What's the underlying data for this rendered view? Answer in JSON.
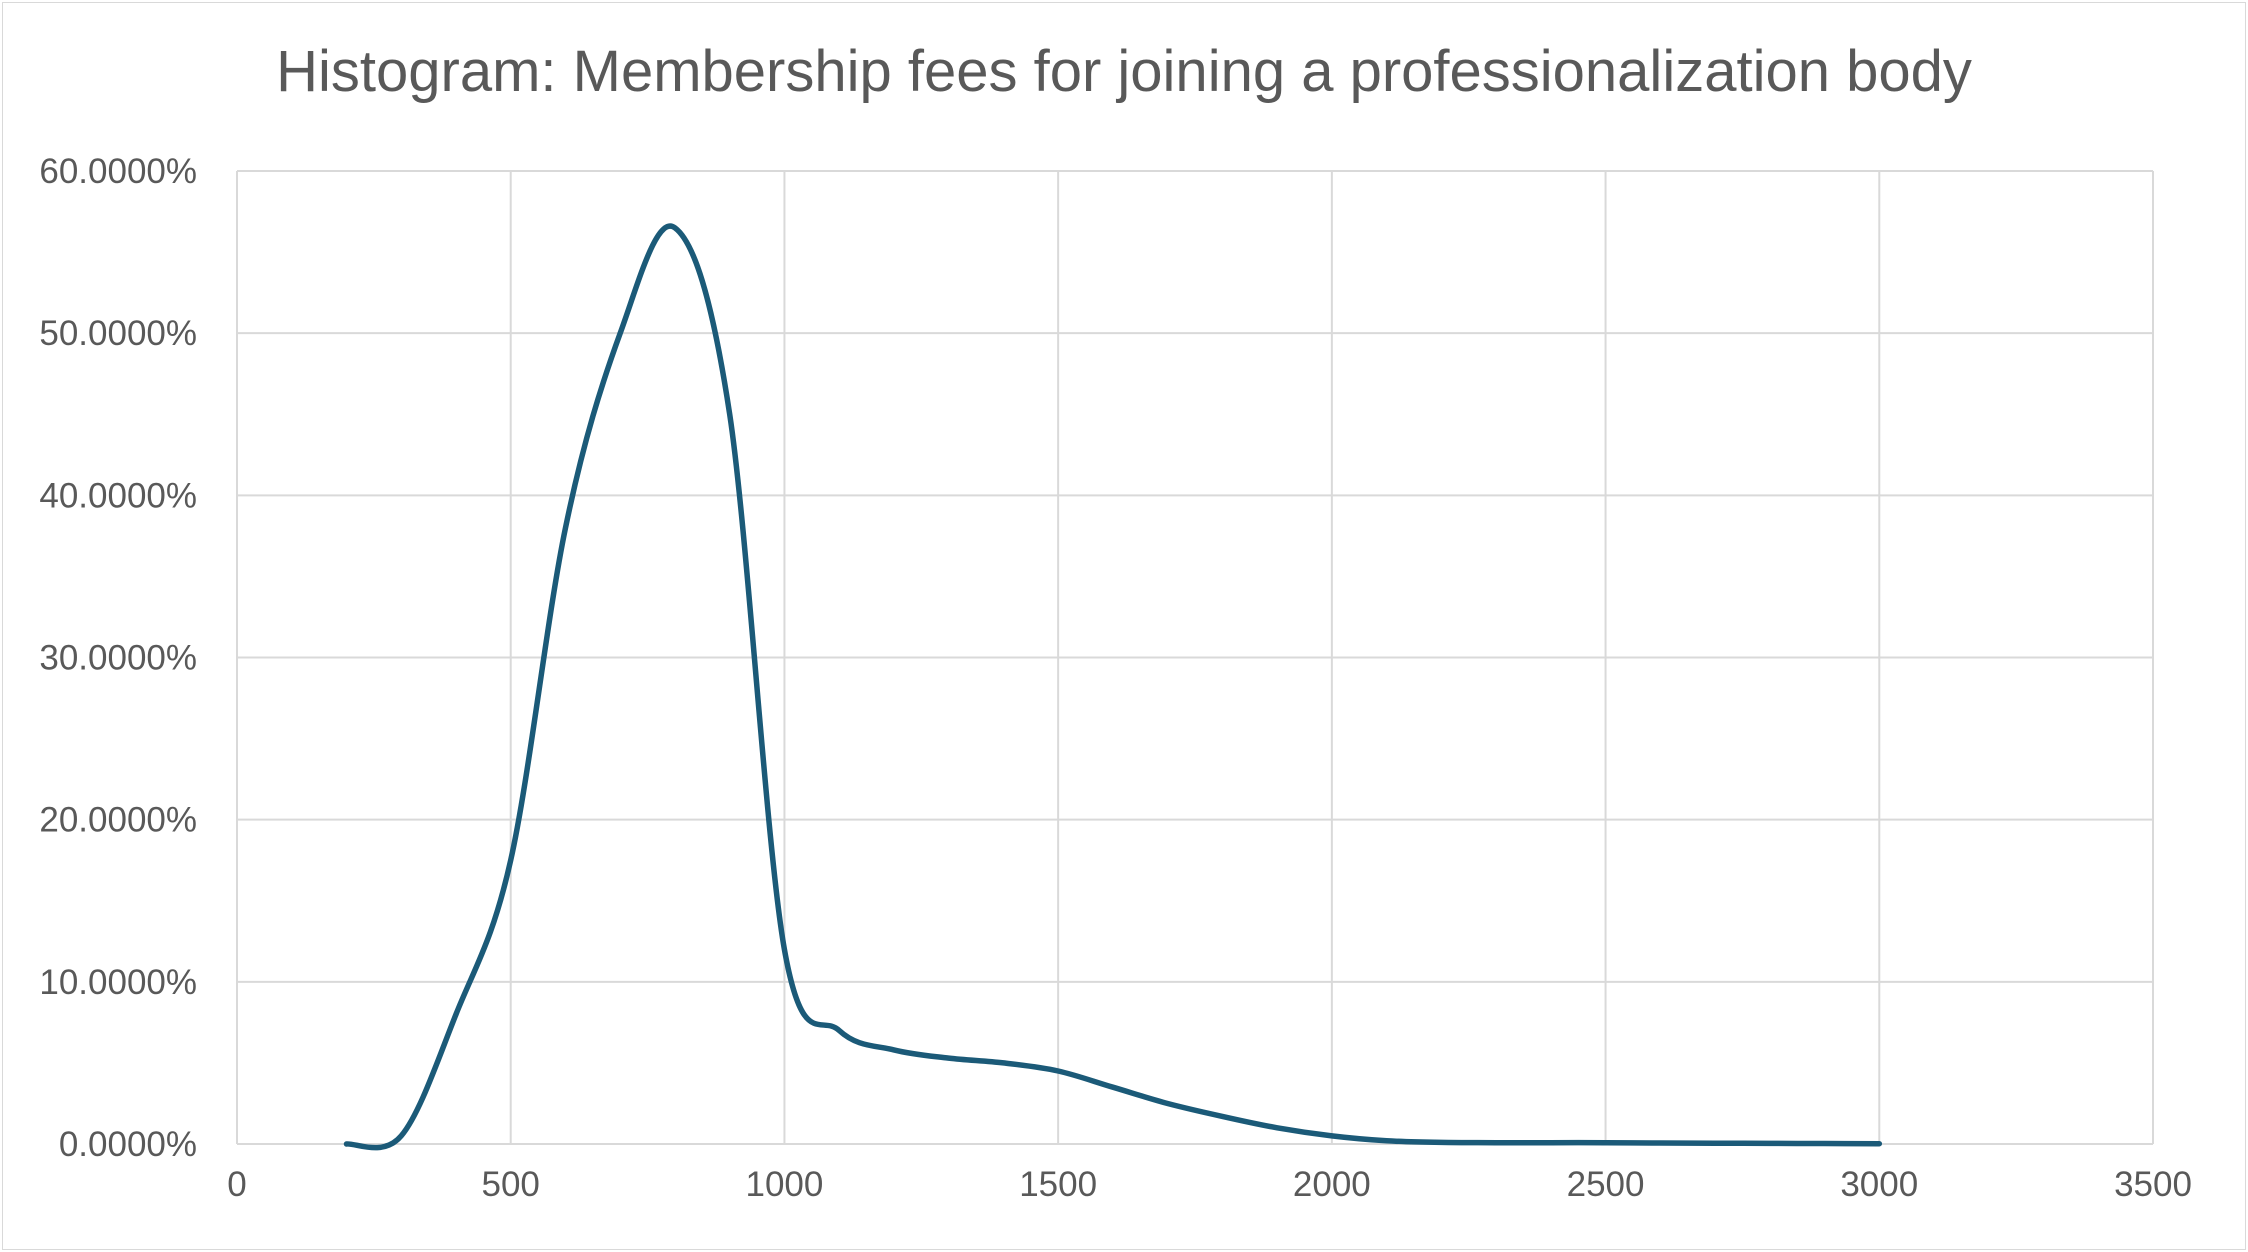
{
  "chart_data": {
    "type": "line",
    "title": "Histogram: Membership fees for joining a professionalization body",
    "xlabel": "",
    "ylabel": "",
    "xlim": [
      0,
      3500
    ],
    "ylim": [
      0,
      0.6
    ],
    "x_ticks": [
      "0",
      "500",
      "1000",
      "1500",
      "2000",
      "2500",
      "3000",
      "3500"
    ],
    "y_ticks": [
      "0.0000%",
      "10.0000%",
      "20.0000%",
      "30.0000%",
      "40.0000%",
      "50.0000%",
      "60.0000%"
    ],
    "grid": true,
    "legend": "none",
    "series": [
      {
        "color": "#1b5a78",
        "smooth": true,
        "x": [
          200,
          300,
          400,
          500,
          600,
          700,
          800,
          900,
          1000,
          1100,
          1200,
          1300,
          1400,
          1500,
          1600,
          1700,
          1800,
          1900,
          2000,
          2100,
          2200,
          2300,
          2400,
          2500,
          2600,
          2700,
          2800,
          2900,
          3000
        ],
        "y": [
          0.0,
          0.005,
          0.08,
          0.175,
          0.38,
          0.5,
          0.565,
          0.45,
          0.12,
          0.07,
          0.058,
          0.053,
          0.05,
          0.045,
          0.035,
          0.025,
          0.017,
          0.01,
          0.005,
          0.002,
          0.001,
          0.0008,
          0.0008,
          0.0008,
          0.0006,
          0.0005,
          0.0004,
          0.0003,
          0.0002
        ]
      }
    ]
  },
  "style": {
    "grid_color": "#d9d9d9",
    "text_color": "#595959"
  }
}
